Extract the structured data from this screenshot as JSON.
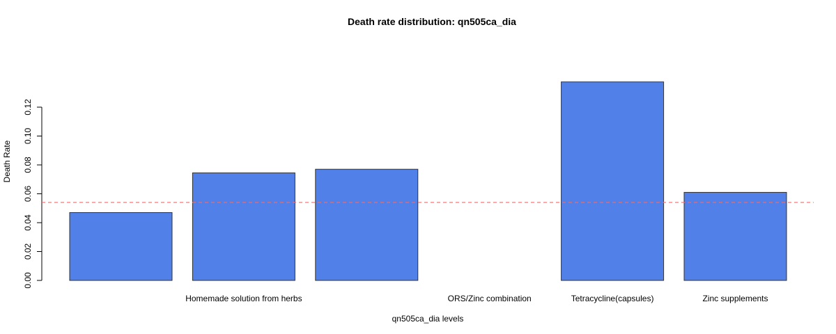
{
  "chart_data": {
    "type": "bar",
    "title": "Death rate distribution: qn505ca_dia",
    "xlabel": "qn505ca_dia levels",
    "ylabel": "Death Rate",
    "categories": [
      "",
      "Homemade solution from herbs",
      "",
      "ORS/Zinc combination",
      "Tetracycline(capsules)",
      "Zinc supplements"
    ],
    "values": [
      0.047,
      0.0745,
      0.077,
      0.0,
      0.1375,
      0.061
    ],
    "yticks": [
      "0.00",
      "0.02",
      "0.04",
      "0.06",
      "0.08",
      "0.10",
      "0.12"
    ],
    "ylim": [
      0,
      0.14
    ],
    "reference_line": 0.054,
    "bar_color": "#5280e9",
    "bar_border_color": "#333333",
    "reference_line_color": "#f26b6b",
    "grid": false,
    "legend": "none"
  }
}
